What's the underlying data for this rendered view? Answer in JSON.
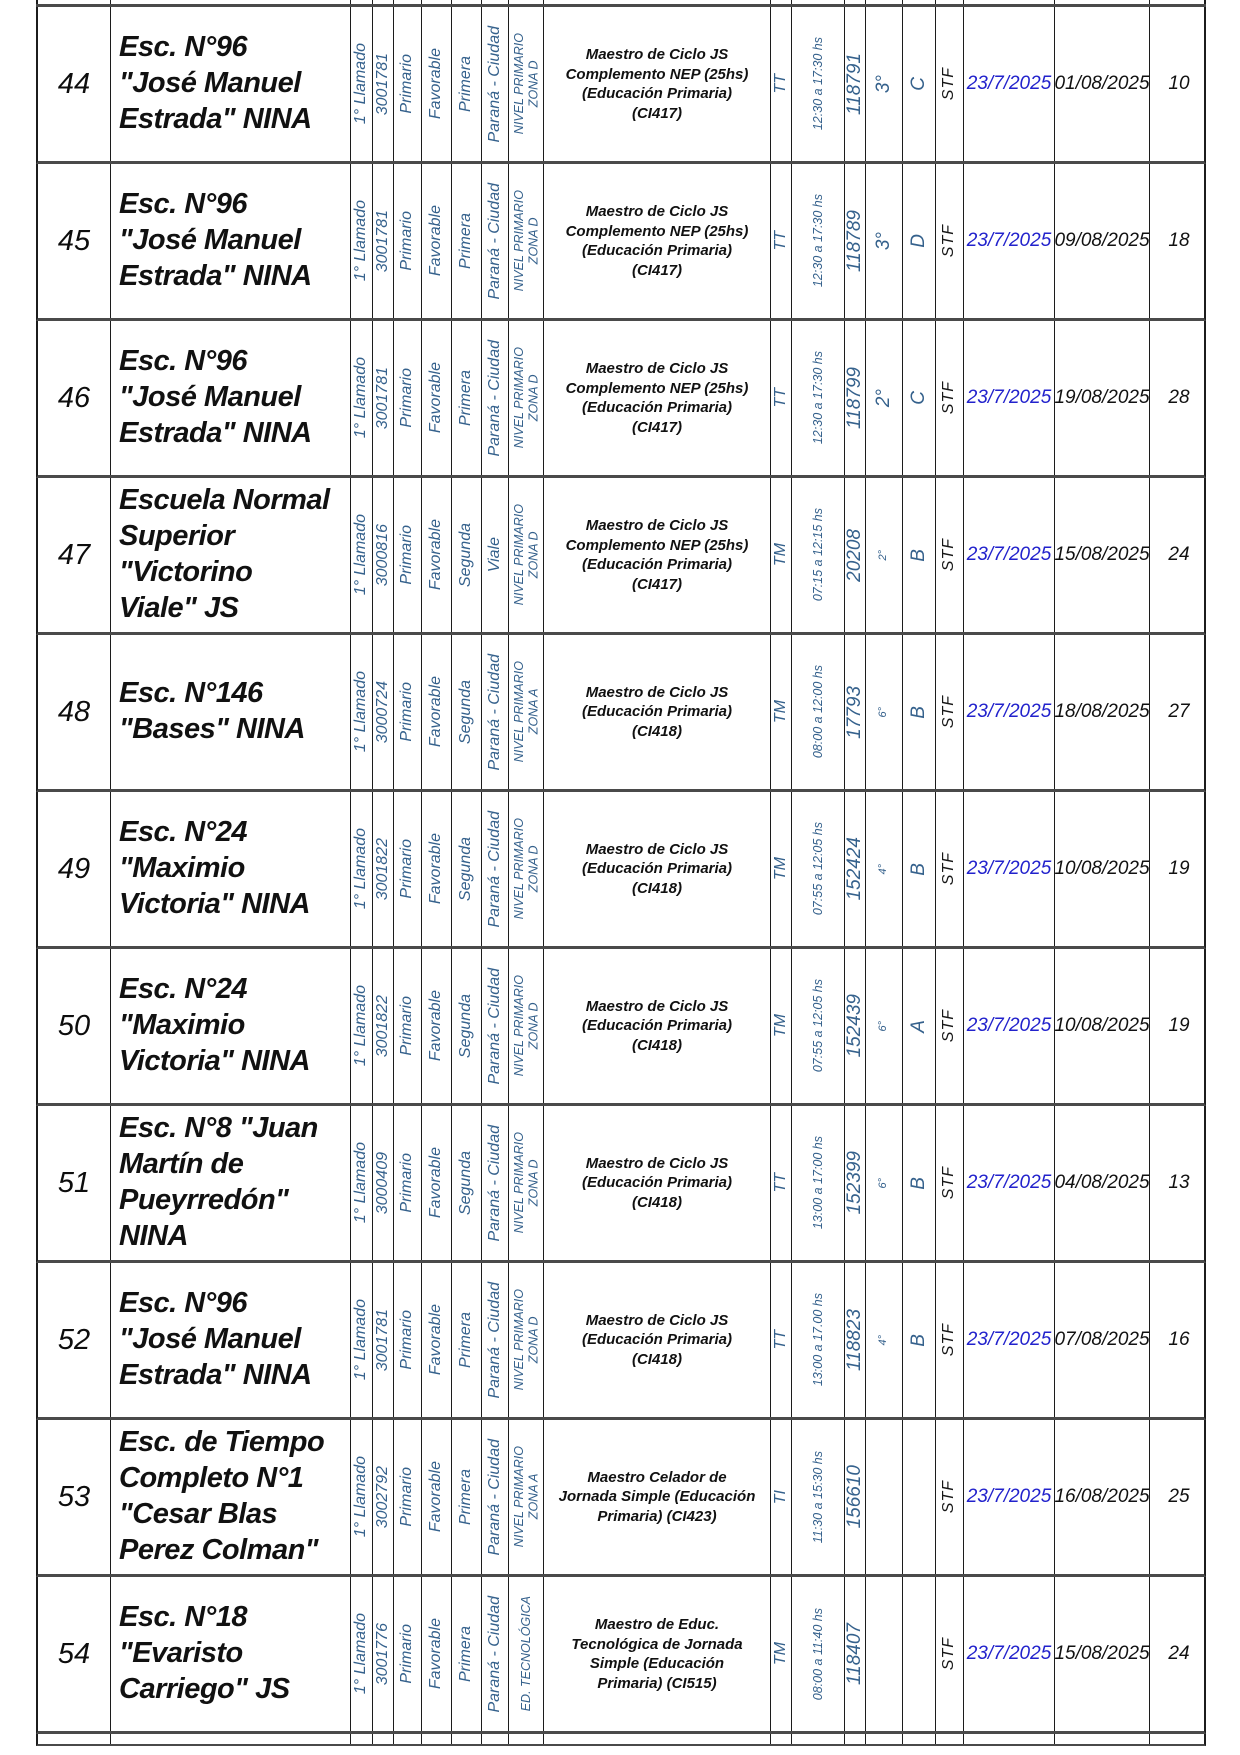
{
  "document": {
    "type": "listado-designaciones-suplencias",
    "status_label": "STF",
    "offer_date": "23/7/2025"
  },
  "colors": {
    "rotated_text": "#35618C",
    "offer_date_blue": "#2222CC",
    "body_text": "#111111",
    "grid_line": "#1c1c1c",
    "row_separator": "#4a4a4a",
    "background": "#ffffff"
  },
  "rows": [
    {
      "num": "44",
      "school": "Esc. N°96\n\"José Manuel\nEstrada\" NINA",
      "llamado": "1° Llamado",
      "cue": "3001781",
      "nivel": "Primario",
      "concepto": "Favorable",
      "categoria": "Primera",
      "localidad": "Paraná - Ciudad",
      "zona": "NIVEL PRIMARIO\nZONA D",
      "cargo": "Maestro de Ciclo JS\nComplemento NEP (25hs)\n(Educación Primaria)\n(CI417)",
      "turno": "TT",
      "horario": "12:30 a 17:30 hs",
      "vacante": "118791",
      "grado": "3°",
      "grado_small": false,
      "seccion": "C",
      "estado": "STF",
      "fecha_alta": "23/7/2025",
      "fecha_inicio": "01/08/2025",
      "dias": "10"
    },
    {
      "num": "45",
      "school": "Esc. N°96\n\"José Manuel\nEstrada\" NINA",
      "llamado": "1° Llamado",
      "cue": "3001781",
      "nivel": "Primario",
      "concepto": "Favorable",
      "categoria": "Primera",
      "localidad": "Paraná - Ciudad",
      "zona": "NIVEL PRIMARIO\nZONA D",
      "cargo": "Maestro de Ciclo JS\nComplemento NEP (25hs)\n(Educación Primaria)\n(CI417)",
      "turno": "TT",
      "horario": "12:30 a 17:30 hs",
      "vacante": "118789",
      "grado": "3°",
      "grado_small": false,
      "seccion": "D",
      "estado": "STF",
      "fecha_alta": "23/7/2025",
      "fecha_inicio": "09/08/2025",
      "dias": "18"
    },
    {
      "num": "46",
      "school": "Esc. N°96\n\"José Manuel\nEstrada\" NINA",
      "llamado": "1° Llamado",
      "cue": "3001781",
      "nivel": "Primario",
      "concepto": "Favorable",
      "categoria": "Primera",
      "localidad": "Paraná - Ciudad",
      "zona": "NIVEL PRIMARIO\nZONA D",
      "cargo": "Maestro de Ciclo JS\nComplemento NEP (25hs)\n(Educación Primaria)\n(CI417)",
      "turno": "TT",
      "horario": "12:30 a 17:30 hs",
      "vacante": "118799",
      "grado": "2°",
      "grado_small": false,
      "seccion": "C",
      "estado": "STF",
      "fecha_alta": "23/7/2025",
      "fecha_inicio": "19/08/2025",
      "dias": "28"
    },
    {
      "num": "47",
      "school": "Escuela Normal\nSuperior\n\"Victorino\nViale\" JS",
      "llamado": "1° Llamado",
      "cue": "3000816",
      "nivel": "Primario",
      "concepto": "Favorable",
      "categoria": "Segunda",
      "localidad": "Viale",
      "zona": "NIVEL PRIMARIO\nZONA D",
      "cargo": "Maestro de Ciclo JS\nComplemento NEP (25hs)\n(Educación Primaria)\n(CI417)",
      "turno": "TM",
      "horario": "07:15 a 12:15 hs",
      "vacante": "20208",
      "grado": "2°",
      "grado_small": true,
      "seccion": "B",
      "estado": "STF",
      "fecha_alta": "23/7/2025",
      "fecha_inicio": "15/08/2025",
      "dias": "24"
    },
    {
      "num": "48",
      "school": "Esc. N°146\n\"Bases\" NINA",
      "llamado": "1° Llamado",
      "cue": "3000724",
      "nivel": "Primario",
      "concepto": "Favorable",
      "categoria": "Segunda",
      "localidad": "Paraná - Ciudad",
      "zona": "NIVEL PRIMARIO\nZONA A",
      "cargo": "Maestro de Ciclo JS\n(Educación Primaria)\n(CI418)",
      "turno": "TM",
      "horario": "08:00 a 12:00 hs",
      "vacante": "17793",
      "grado": "6°",
      "grado_small": true,
      "seccion": "B",
      "estado": "STF",
      "fecha_alta": "23/7/2025",
      "fecha_inicio": "18/08/2025",
      "dias": "27"
    },
    {
      "num": "49",
      "school": "Esc. N°24\n\"Maximio\nVictoria\" NINA",
      "llamado": "1° Llamado",
      "cue": "3001822",
      "nivel": "Primario",
      "concepto": "Favorable",
      "categoria": "Segunda",
      "localidad": "Paraná - Ciudad",
      "zona": "NIVEL PRIMARIO\nZONA D",
      "cargo": "Maestro de Ciclo JS\n(Educación Primaria)\n(CI418)",
      "turno": "TM",
      "horario": "07:55 a 12:05 hs",
      "vacante": "152424",
      "grado": "4°",
      "grado_small": true,
      "seccion": "B",
      "estado": "STF",
      "fecha_alta": "23/7/2025",
      "fecha_inicio": "10/08/2025",
      "dias": "19"
    },
    {
      "num": "50",
      "school": "Esc. N°24\n\"Maximio\nVictoria\" NINA",
      "llamado": "1° Llamado",
      "cue": "3001822",
      "nivel": "Primario",
      "concepto": "Favorable",
      "categoria": "Segunda",
      "localidad": "Paraná - Ciudad",
      "zona": "NIVEL PRIMARIO\nZONA D",
      "cargo": "Maestro de Ciclo JS\n(Educación Primaria)\n(CI418)",
      "turno": "TM",
      "horario": "07:55 a 12:05 hs",
      "vacante": "152439",
      "grado": "6°",
      "grado_small": true,
      "seccion": "A",
      "estado": "STF",
      "fecha_alta": "23/7/2025",
      "fecha_inicio": "10/08/2025",
      "dias": "19"
    },
    {
      "num": "51",
      "school": "Esc. N°8 \"Juan\nMartín de\nPueyrredón\"\nNINA",
      "llamado": "1° Llamado",
      "cue": "3000409",
      "nivel": "Primario",
      "concepto": "Favorable",
      "categoria": "Segunda",
      "localidad": "Paraná - Ciudad",
      "zona": "NIVEL PRIMARIO\nZONA D",
      "cargo": "Maestro de Ciclo JS\n(Educación Primaria)\n(CI418)",
      "turno": "TT",
      "horario": "13:00 a 17:00 hs",
      "vacante": "152399",
      "grado": "6°",
      "grado_small": true,
      "seccion": "B",
      "estado": "STF",
      "fecha_alta": "23/7/2025",
      "fecha_inicio": "04/08/2025",
      "dias": "13"
    },
    {
      "num": "52",
      "school": "Esc. N°96\n\"José Manuel\nEstrada\" NINA",
      "llamado": "1° Llamado",
      "cue": "3001781",
      "nivel": "Primario",
      "concepto": "Favorable",
      "categoria": "Primera",
      "localidad": "Paraná - Ciudad",
      "zona": "NIVEL PRIMARIO\nZONA D",
      "cargo": "Maestro de Ciclo JS\n(Educación Primaria)\n(CI418)",
      "turno": "TT",
      "horario": "13:00 a 17.00 hs",
      "vacante": "118823",
      "grado": "4°",
      "grado_small": true,
      "seccion": "B",
      "estado": "STF",
      "fecha_alta": "23/7/2025",
      "fecha_inicio": "07/08/2025",
      "dias": "16"
    },
    {
      "num": "53",
      "school": "Esc. de Tiempo\nCompleto N°1\n\"Cesar Blas\nPerez Colman\"",
      "llamado": "1° Llamado",
      "cue": "3002792",
      "nivel": "Primario",
      "concepto": "Favorable",
      "categoria": "Primera",
      "localidad": "Paraná - Ciudad",
      "zona": "NIVEL PRIMARIO\nZONA A",
      "cargo": "Maestro Celador de\nJornada Simple (Educación\nPrimaria) (CI423)",
      "turno": "TI",
      "horario": "11:30 a 15:30 hs",
      "vacante": "156610",
      "grado": "",
      "grado_small": true,
      "seccion": "",
      "estado": "STF",
      "fecha_alta": "23/7/2025",
      "fecha_inicio": "16/08/2025",
      "dias": "25"
    },
    {
      "num": "54",
      "school": "Esc. N°18\n\"Evaristo\nCarriego\" JS",
      "llamado": "1° Llamado",
      "cue": "3001776",
      "nivel": "Primario",
      "concepto": "Favorable",
      "categoria": "Primera",
      "localidad": "Paraná - Ciudad",
      "zona": "ED. TECNOLÓGICA",
      "cargo": "Maestro de Educ.\nTecnológica de Jornada\nSimple (Educación\nPrimaria) (CI515)",
      "turno": "TM",
      "horario": "08:00 a 11:40 hs",
      "vacante": "118407",
      "grado": "",
      "grado_small": true,
      "seccion": "",
      "estado": "STF",
      "fecha_alta": "23/7/2025",
      "fecha_inicio": "15/08/2025",
      "dias": "24"
    }
  ]
}
